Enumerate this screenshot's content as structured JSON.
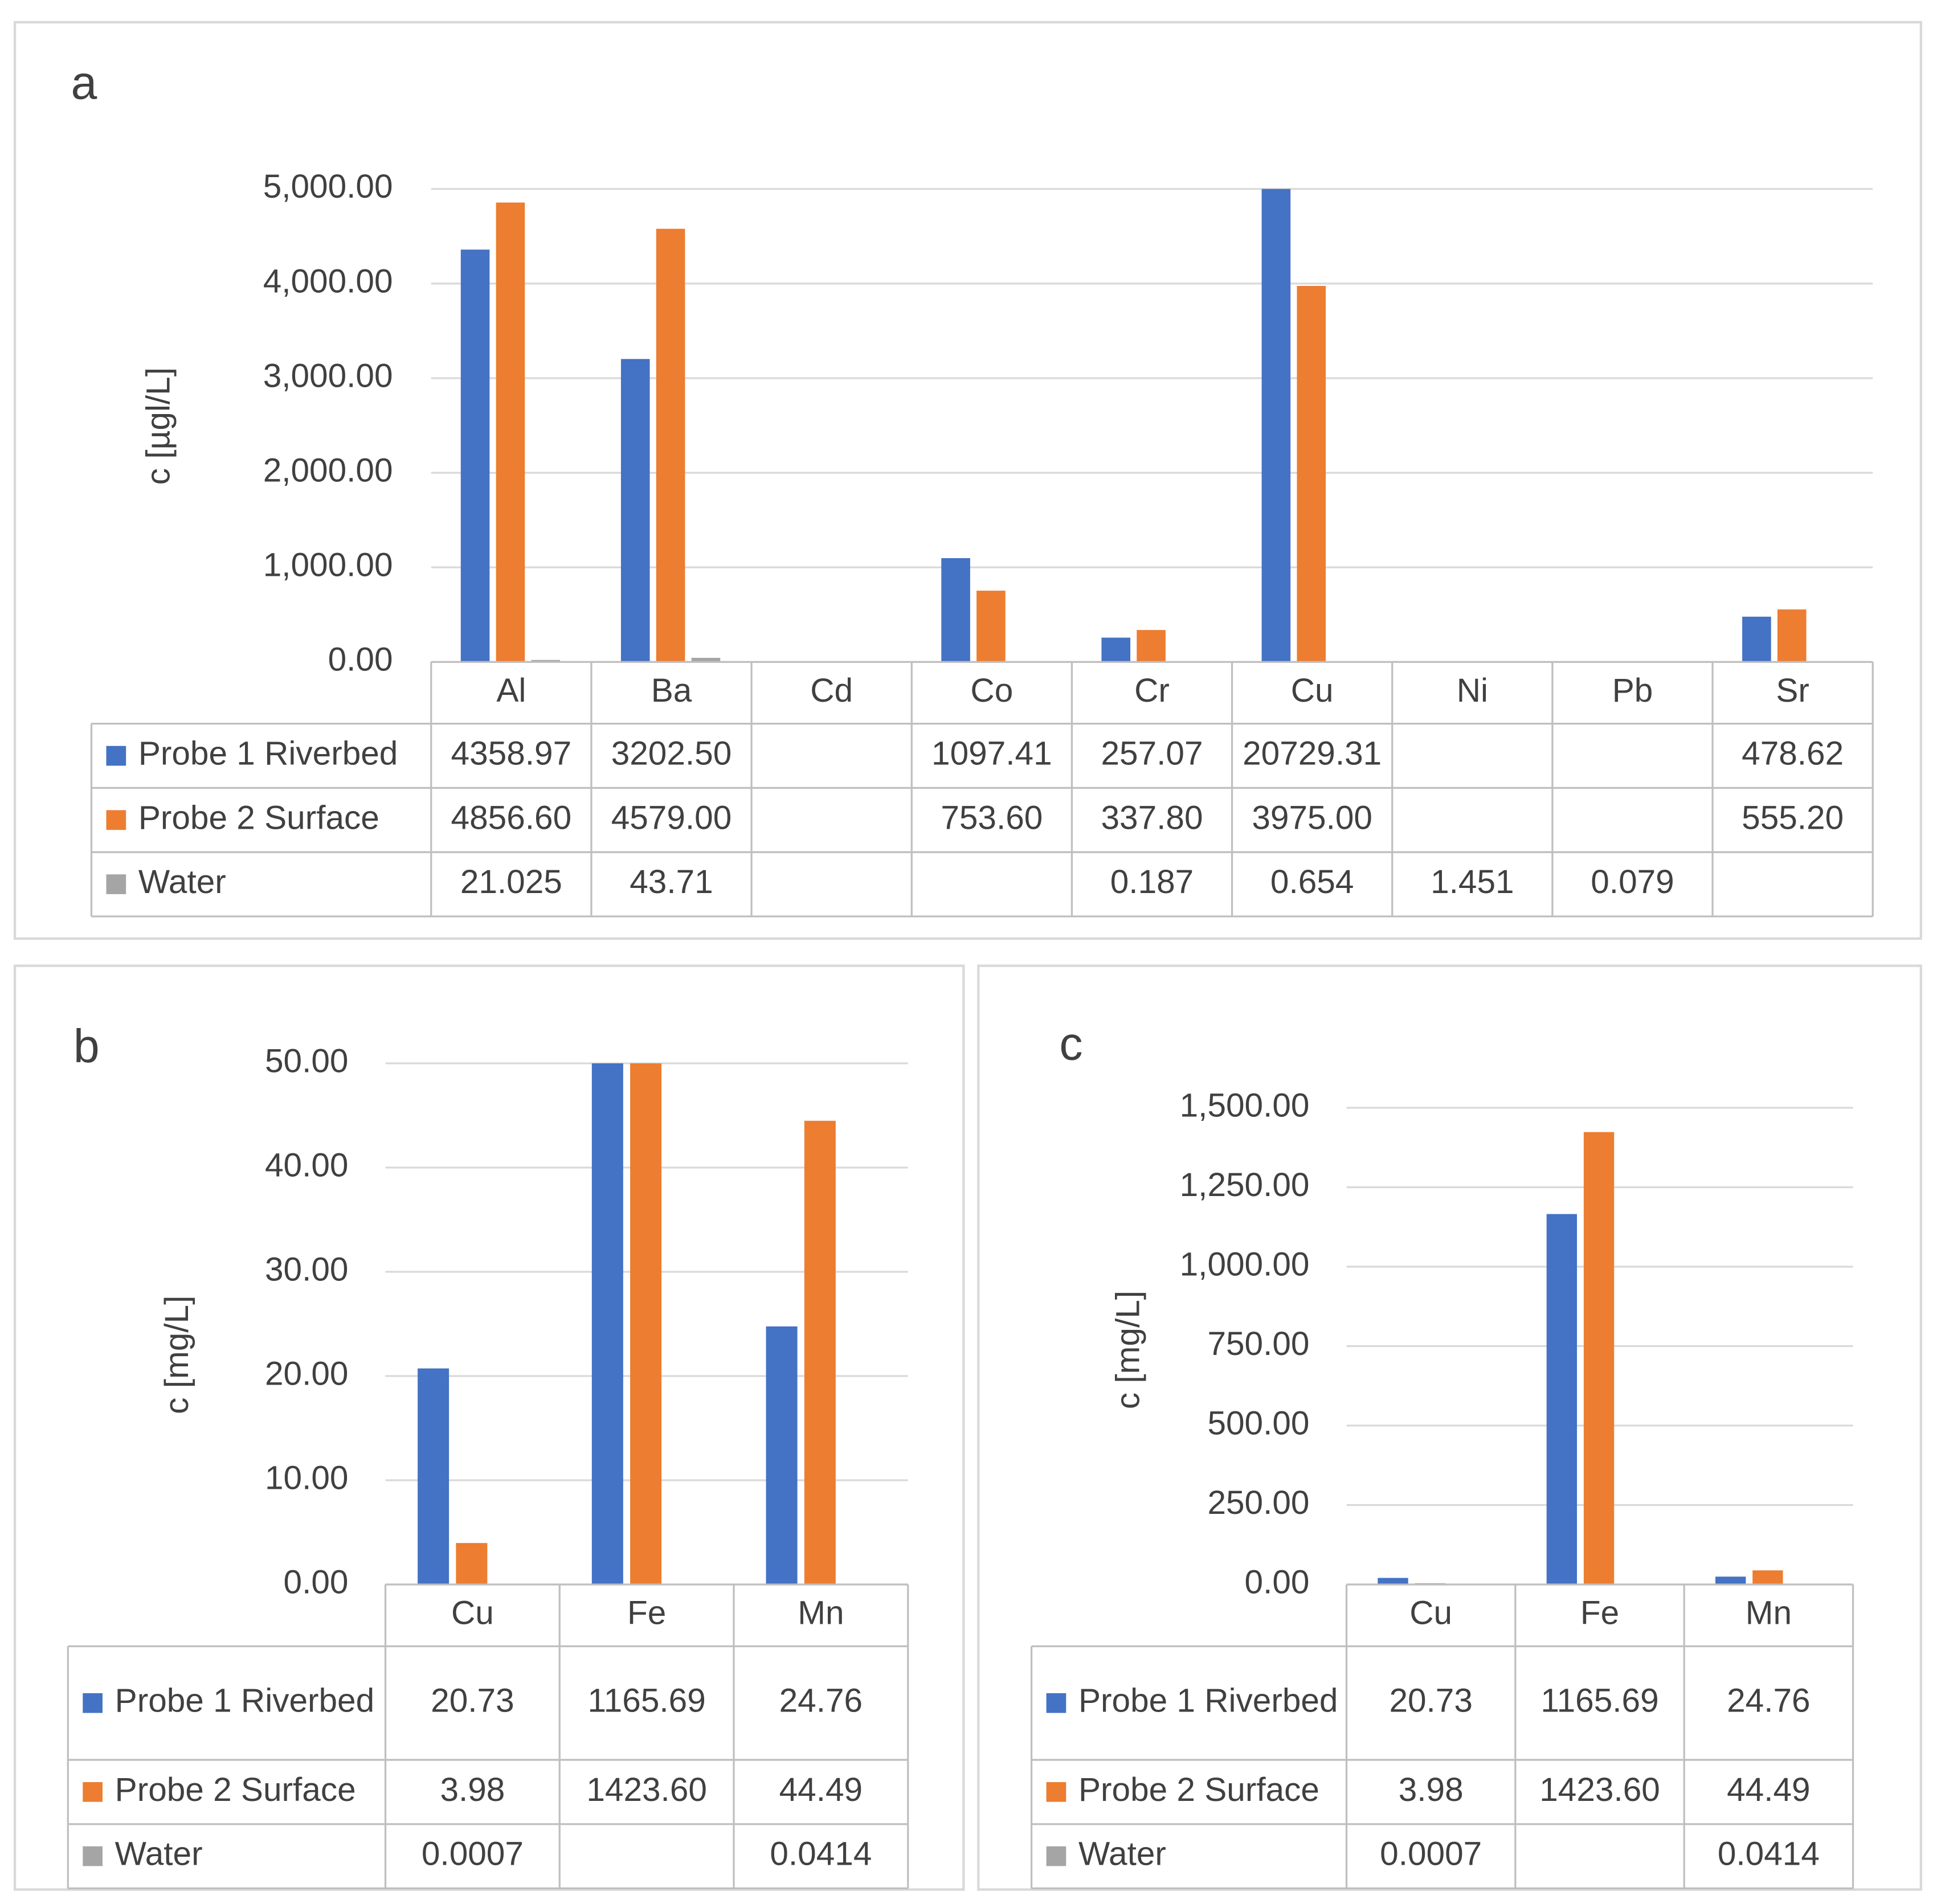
{
  "chart_data": [
    {
      "type": "bar",
      "label": "a",
      "y_label": "c [µgl/L]",
      "categories": [
        "Al",
        "Ba",
        "Cd",
        "Co",
        "Cr",
        "Cu",
        "Ni",
        "Pb",
        "Sr"
      ],
      "series": [
        {
          "name": "Probe 1 Riverbed",
          "color": "#4472c4",
          "values": [
            4358.97,
            3202.5,
            null,
            1097.41,
            257.07,
            20729.31,
            null,
            null,
            478.62
          ],
          "value_labels": [
            "4358.97",
            "3202.50",
            null,
            "1097.41",
            "257.07",
            "20729.31",
            null,
            null,
            "478.62"
          ]
        },
        {
          "name": "Probe 2 Surface",
          "color": "#ed7d31",
          "values": [
            4856.6,
            4579,
            null,
            753.6,
            337.8,
            3975,
            null,
            null,
            555.2
          ],
          "value_labels": [
            "4856.60",
            "4579.00",
            null,
            "753.60",
            "337.80",
            "3975.00",
            null,
            null,
            "555.20"
          ]
        },
        {
          "name": "Water",
          "color": "#a5a5a5",
          "values": [
            21.025,
            43.71,
            null,
            null,
            0.187,
            0.654,
            1.451,
            0.079,
            null
          ],
          "value_labels": [
            "21.025",
            "43.71",
            null,
            null,
            "0.187",
            "0.654",
            "1.451",
            "0.079",
            null
          ]
        }
      ],
      "ylim": [
        0,
        5000
      ],
      "yticks": [
        {
          "value": 0,
          "label": "0.00"
        },
        {
          "value": 1000,
          "label": "1,000.00"
        },
        {
          "value": 2000,
          "label": "2,000.00"
        },
        {
          "value": 3000,
          "label": "3,000.00"
        },
        {
          "value": 4000,
          "label": "4,000.00"
        },
        {
          "value": 5000,
          "label": "5,000.00"
        }
      ],
      "grid": true
    },
    {
      "type": "bar",
      "label": "b",
      "y_label": "c [mg/L]",
      "categories": [
        "Cu",
        "Fe",
        "Mn"
      ],
      "series": [
        {
          "name": "Probe 1 Riverbed",
          "color": "#4472c4",
          "values": [
            20.73,
            1165.69,
            24.76
          ],
          "value_labels": [
            "20.73",
            "1165.69",
            "24.76"
          ]
        },
        {
          "name": "Probe 2 Surface",
          "color": "#ed7d31",
          "values": [
            3.98,
            1423.6,
            44.49
          ],
          "value_labels": [
            "3.98",
            "1423.60",
            "44.49"
          ]
        },
        {
          "name": "Water",
          "color": "#a5a5a5",
          "values": [
            0.0007,
            null,
            0.0414
          ],
          "value_labels": [
            "0.0007",
            null,
            "0.0414"
          ]
        }
      ],
      "ylim": [
        0,
        50
      ],
      "yticks": [
        {
          "value": 0,
          "label": "0.00"
        },
        {
          "value": 10,
          "label": "10.00"
        },
        {
          "value": 20,
          "label": "20.00"
        },
        {
          "value": 30,
          "label": "30.00"
        },
        {
          "value": 40,
          "label": "40.00"
        },
        {
          "value": 50,
          "label": "50.00"
        }
      ],
      "grid": true
    },
    {
      "type": "bar",
      "label": "c",
      "y_label": "c [mg/L]",
      "categories": [
        "Cu",
        "Fe",
        "Mn"
      ],
      "series": [
        {
          "name": "Probe 1 Riverbed",
          "color": "#4472c4",
          "values": [
            20.73,
            1165.69,
            24.76
          ],
          "value_labels": [
            "20.73",
            "1165.69",
            "24.76"
          ]
        },
        {
          "name": "Probe 2 Surface",
          "color": "#ed7d31",
          "values": [
            3.98,
            1423.6,
            44.49
          ],
          "value_labels": [
            "3.98",
            "1423.60",
            "44.49"
          ]
        },
        {
          "name": "Water",
          "color": "#a5a5a5",
          "values": [
            0.0007,
            null,
            0.0414
          ],
          "value_labels": [
            "0.0007",
            null,
            "0.0414"
          ]
        }
      ],
      "ylim": [
        0,
        1500
      ],
      "yticks": [
        {
          "value": 0,
          "label": "0.00"
        },
        {
          "value": 250,
          "label": "250.00"
        },
        {
          "value": 500,
          "label": "500.00"
        },
        {
          "value": 750,
          "label": "750.00"
        },
        {
          "value": 1000,
          "label": "1,000.00"
        },
        {
          "value": 1250,
          "label": "1,250.00"
        },
        {
          "value": 1500,
          "label": "1,500.00"
        }
      ],
      "grid": true
    }
  ]
}
